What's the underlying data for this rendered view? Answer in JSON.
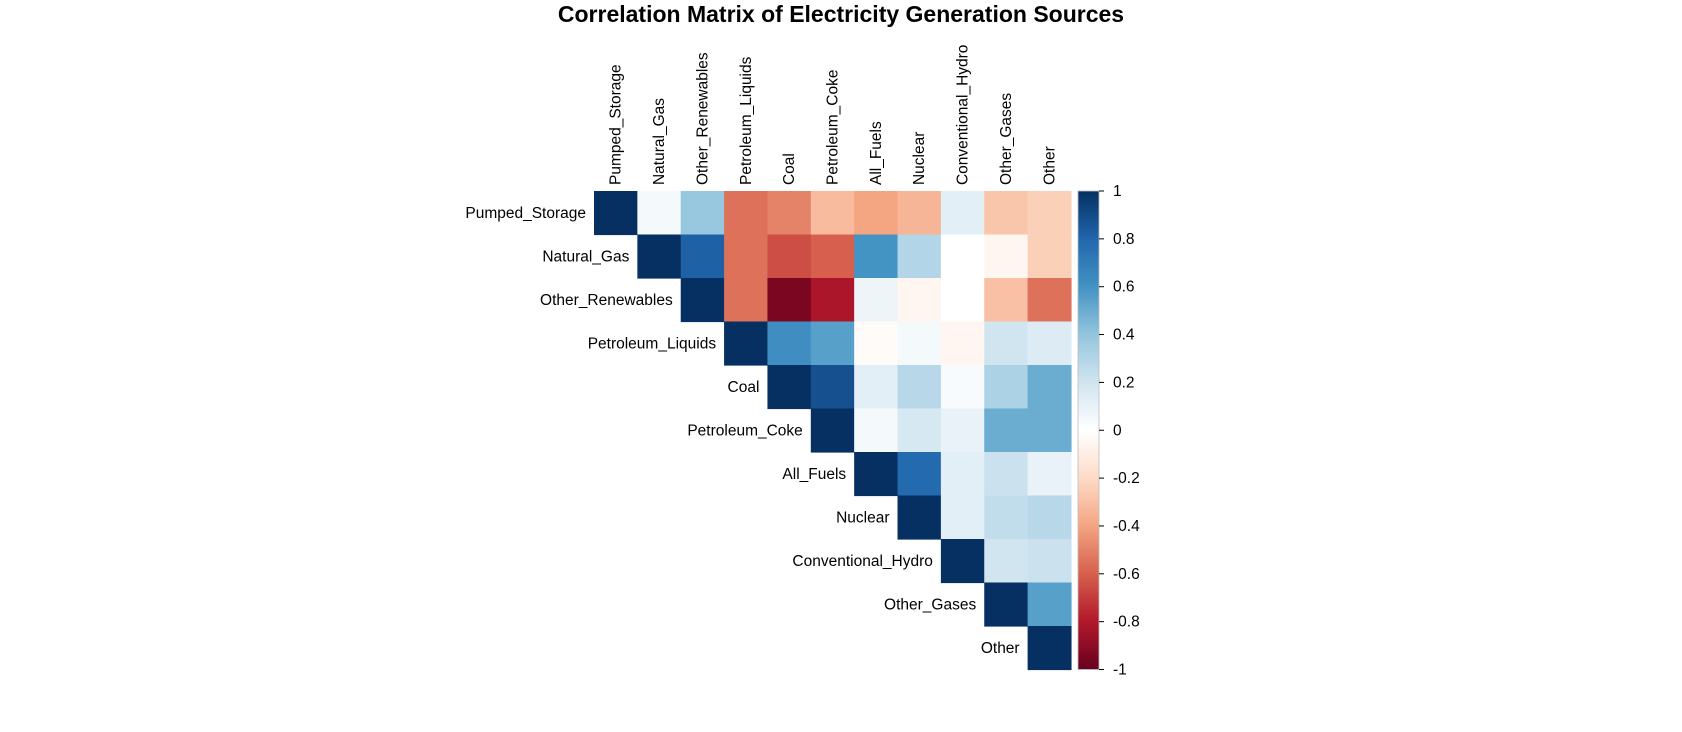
{
  "chart_data": {
    "type": "heatmap",
    "subtype": "upper-triangle correlation matrix",
    "title": "Correlation Matrix of Electricity Generation Sources",
    "variables": [
      "Pumped_Storage",
      "Natural_Gas",
      "Other_Renewables",
      "Petroleum_Liquids",
      "Coal",
      "Petroleum_Coke",
      "All_Fuels",
      "Nuclear",
      "Conventional_Hydro",
      "Other_Gases",
      "Other"
    ],
    "matrix": [
      [
        1.0,
        0.05,
        0.38,
        -0.55,
        -0.5,
        -0.32,
        -0.4,
        -0.34,
        0.12,
        -0.28,
        -0.24
      ],
      [
        null,
        1.0,
        0.82,
        -0.55,
        -0.65,
        -0.6,
        0.6,
        0.3,
        0.0,
        -0.05,
        -0.24
      ],
      [
        null,
        null,
        1.0,
        -0.55,
        -0.95,
        -0.82,
        0.08,
        -0.05,
        0.0,
        -0.3,
        -0.55
      ],
      [
        null,
        null,
        null,
        1.0,
        0.62,
        0.55,
        -0.02,
        0.05,
        -0.05,
        0.2,
        0.15
      ],
      [
        null,
        null,
        null,
        null,
        1.0,
        0.88,
        0.12,
        0.28,
        0.03,
        0.32,
        0.5
      ],
      [
        null,
        null,
        null,
        null,
        null,
        1.0,
        0.05,
        0.18,
        0.1,
        0.5,
        0.5
      ],
      [
        null,
        null,
        null,
        null,
        null,
        null,
        1.0,
        0.78,
        0.12,
        0.22,
        0.1
      ],
      [
        null,
        null,
        null,
        null,
        null,
        null,
        null,
        1.0,
        0.12,
        0.25,
        0.28
      ],
      [
        null,
        null,
        null,
        null,
        null,
        null,
        null,
        null,
        1.0,
        0.2,
        0.22
      ],
      [
        null,
        null,
        null,
        null,
        null,
        null,
        null,
        null,
        null,
        1.0,
        0.55
      ],
      [
        null,
        null,
        null,
        null,
        null,
        null,
        null,
        null,
        null,
        null,
        1.0
      ]
    ],
    "value_range": [
      -1,
      1
    ],
    "colorbar": {
      "ticks": [
        1,
        0.8,
        0.6,
        0.4,
        0.2,
        0,
        -0.2,
        -0.4,
        -0.6,
        -0.8,
        -1
      ],
      "tick_labels": [
        "1",
        "0.8",
        "0.6",
        "0.4",
        "0.2",
        "0",
        "-0.2",
        "-0.4",
        "-0.6",
        "-0.8",
        "-1"
      ],
      "placement": "right",
      "stops": [
        "#67001F",
        "#B2182B",
        "#D6604D",
        "#F4A582",
        "#FDDBC7",
        "#FFFFFF",
        "#D1E5F0",
        "#92C5DE",
        "#4393C3",
        "#2166AC",
        "#053061"
      ]
    },
    "grid": false
  }
}
